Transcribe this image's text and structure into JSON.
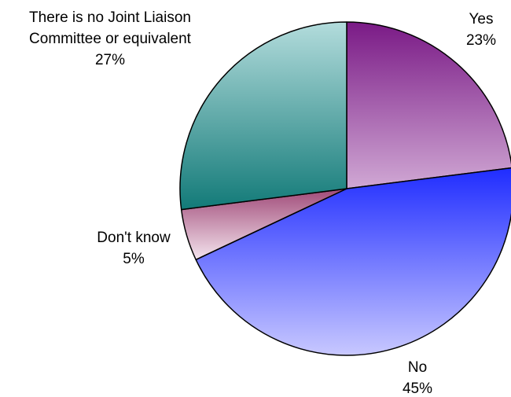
{
  "chart_data": {
    "type": "pie",
    "start_angle_deg": 0,
    "direction": "clockwise",
    "slices": [
      {
        "name": "Yes",
        "value": 23,
        "percent_label": "23%",
        "label_lines": [
          "Yes"
        ],
        "colors": {
          "outer": "#7a1a86",
          "inner": "#d0a8d4"
        },
        "gradient": "vertical-down"
      },
      {
        "name": "No",
        "value": 45,
        "percent_label": "45%",
        "label_lines": [
          "No"
        ],
        "colors": {
          "outer": "#1f2cff",
          "inner": "#c8c8ff"
        },
        "gradient": "vertical-down"
      },
      {
        "name": "Don't know",
        "value": 5,
        "percent_label": "5%",
        "label_lines": [
          "Don't know"
        ],
        "colors": {
          "outer": "#a04a78",
          "inner": "#f4e4ee"
        },
        "gradient": "vertical-down"
      },
      {
        "name": "There is no Joint Liaison Committee or equivalent",
        "value": 27,
        "percent_label": "27%",
        "label_lines": [
          "There is no Joint Liaison",
          "Committee or equivalent"
        ],
        "colors": {
          "outer": "#127a78",
          "inner": "#b3dcdc"
        },
        "gradient": "vertical-up"
      }
    ],
    "stroke_color": "#000000"
  }
}
